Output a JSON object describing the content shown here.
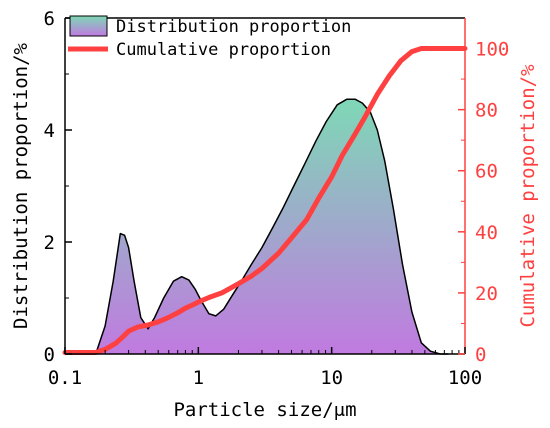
{
  "chart_data": {
    "type": "area",
    "xlabel": "Particle size/μm",
    "ylabel": "Distribution proportion/%",
    "y2label": "Cumulative proportion/%",
    "xscale": "log",
    "xlim": [
      0.1,
      100
    ],
    "ylim": [
      0,
      6
    ],
    "y2lim": [
      0,
      110
    ],
    "xticks": [
      0.1,
      1,
      10,
      100
    ],
    "xtick_labels": [
      "0.1",
      "1",
      "10",
      "100"
    ],
    "yticks": [
      0,
      2,
      4,
      6
    ],
    "ytick_labels": [
      "0",
      "2",
      "4",
      "6"
    ],
    "y2ticks": [
      0,
      20,
      40,
      60,
      80,
      100
    ],
    "y2tick_labels": [
      "0",
      "20",
      "40",
      "60",
      "80",
      "100"
    ],
    "grid": false,
    "legend_position": "top-left",
    "series": [
      {
        "name": "Distribution proportion",
        "axis": "left",
        "kind": "area",
        "x": [
          0.17,
          0.2,
          0.23,
          0.26,
          0.28,
          0.3,
          0.33,
          0.37,
          0.42,
          0.47,
          0.55,
          0.65,
          0.75,
          0.85,
          0.95,
          1.05,
          1.2,
          1.35,
          1.55,
          1.8,
          2.1,
          2.5,
          3,
          3.6,
          4.3,
          5.2,
          6.3,
          7.6,
          9.1,
          11,
          13,
          15,
          17,
          19.5,
          22,
          25,
          29,
          34,
          40,
          47,
          55,
          65,
          75
        ],
        "values": [
          0,
          0.5,
          1.3,
          2.15,
          2.12,
          1.9,
          1.3,
          0.65,
          0.45,
          0.65,
          1.0,
          1.3,
          1.38,
          1.32,
          1.15,
          0.95,
          0.72,
          0.68,
          0.8,
          1.05,
          1.3,
          1.6,
          1.9,
          2.25,
          2.6,
          3.0,
          3.4,
          3.8,
          4.15,
          4.45,
          4.55,
          4.55,
          4.48,
          4.32,
          4.0,
          3.45,
          2.6,
          1.6,
          0.75,
          0.2,
          0.05,
          0,
          0
        ]
      },
      {
        "name": "Cumulative proportion",
        "axis": "right",
        "kind": "line",
        "x": [
          0.1,
          0.17,
          0.2,
          0.24,
          0.27,
          0.3,
          0.35,
          0.42,
          0.5,
          0.6,
          0.7,
          0.8,
          0.9,
          1,
          1.2,
          1.5,
          2,
          2.5,
          3,
          4,
          5,
          6.5,
          8,
          10,
          12,
          15,
          18,
          22,
          27,
          33,
          40,
          47,
          55,
          65,
          80,
          100
        ],
        "values": [
          0.5,
          0.5,
          1.5,
          3.5,
          5.5,
          7.5,
          8.8,
          9.5,
          10.5,
          12,
          13.5,
          15,
          16,
          17,
          18.5,
          20,
          23,
          25.5,
          28,
          33,
          38,
          44,
          51,
          58,
          65,
          72,
          78,
          85,
          91,
          96,
          99,
          100,
          100,
          100,
          100,
          100
        ]
      }
    ]
  },
  "colors": {
    "distribution_top": "#7ed8b6",
    "distribution_bottom": "#c07ae0",
    "distribution_outline": "#000000",
    "cumulative_line": "#ff4040",
    "right_axis": "#ff4040",
    "left_axis": "#000000"
  }
}
